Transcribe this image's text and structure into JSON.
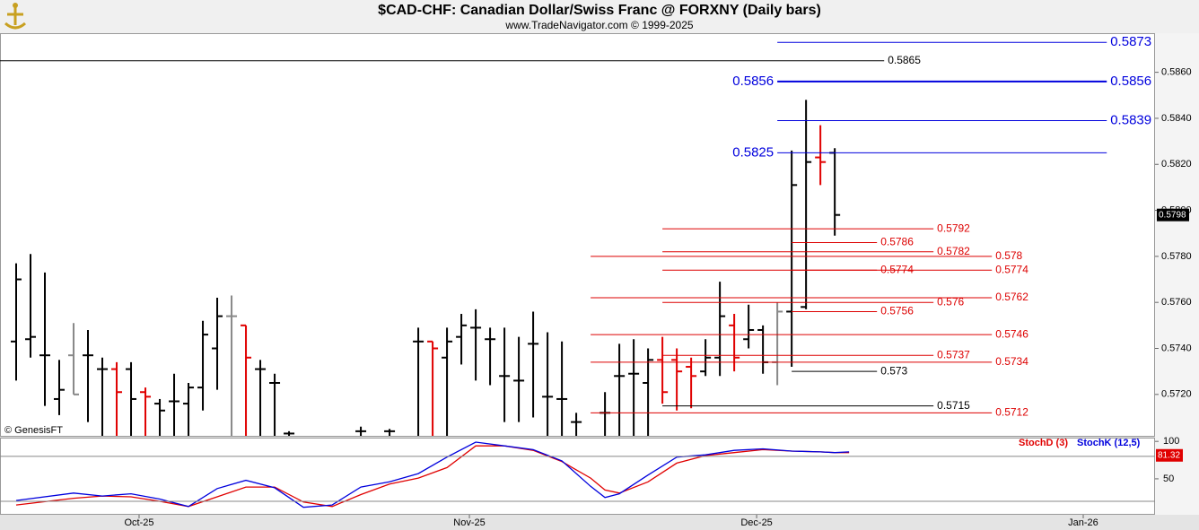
{
  "chart_data": [
    {
      "type": "ohlc",
      "title": "$CAD-CHF:  Canadian Dollar/Swiss Franc @ FORXNY  (Daily bars)",
      "subtitle": "www.TradeNavigator.com © 1999-2025",
      "watermark": "© GenesisFT",
      "xlim": [
        -1.125,
        79.3
      ],
      "ylim": [
        0.5702,
        0.5877
      ],
      "yticks": [
        {
          "value": 0.586,
          "label": "0.5860"
        },
        {
          "value": 0.584,
          "label": "0.5840"
        },
        {
          "value": 0.582,
          "label": "0.5820"
        },
        {
          "value": 0.58,
          "label": "0.5800"
        },
        {
          "value": 0.578,
          "label": "0.5780"
        },
        {
          "value": 0.576,
          "label": "0.5760"
        },
        {
          "value": 0.574,
          "label": "0.5740"
        },
        {
          "value": 0.572,
          "label": "0.5720"
        }
      ],
      "x": [
        0,
        1,
        2,
        3,
        4,
        5,
        6,
        7,
        8,
        9,
        10,
        11,
        12,
        13,
        14,
        15,
        16,
        17,
        18,
        19,
        24,
        26,
        28,
        29,
        30,
        31,
        32,
        33,
        34,
        35,
        36,
        37,
        38,
        39,
        41,
        42,
        43,
        44,
        45,
        46,
        47,
        48,
        49,
        50,
        51,
        52,
        53,
        54,
        55,
        56,
        57
      ],
      "open": [
        0.5743,
        0.5744,
        0.5737,
        0.5718,
        0.5737,
        0.5737,
        0.5731,
        0.5731,
        0.5731,
        0.5721,
        0.5716,
        0.5717,
        0.5716,
        0.5723,
        0.574,
        0.5754,
        0.575,
        0.5731,
        0.5725,
        0.5703,
        0.5704,
        0.5704,
        0.5743,
        0.5743,
        0.5736,
        0.5745,
        0.5749,
        0.5744,
        0.5728,
        0.5726,
        0.5742,
        0.5719,
        0.5718,
        0.5708,
        0.5712,
        0.5728,
        0.5729,
        0.5725,
        0.5735,
        0.5735,
        0.5732,
        0.573,
        0.5736,
        0.575,
        0.5744,
        0.5748,
        0.5734,
        0.5756,
        0.5758,
        0.5823,
        0.5825
      ],
      "high": [
        0.5777,
        0.5781,
        0.5773,
        0.5735,
        0.5751,
        0.5748,
        0.5736,
        0.5734,
        0.5734,
        0.5723,
        0.5718,
        0.5729,
        0.5725,
        0.5752,
        0.5762,
        0.5763,
        0.575,
        0.5735,
        0.5729,
        0.5704,
        0.5706,
        0.5705,
        0.5749,
        0.5743,
        0.5749,
        0.5755,
        0.5757,
        0.5749,
        0.5749,
        0.5745,
        0.5756,
        0.5747,
        0.5743,
        0.5712,
        0.5721,
        0.5742,
        0.5744,
        0.574,
        0.5745,
        0.574,
        0.5736,
        0.5744,
        0.5769,
        0.5755,
        0.5759,
        0.575,
        0.576,
        0.5826,
        0.5848,
        0.5837,
        0.5827
      ],
      "low": [
        0.5726,
        0.5736,
        0.5715,
        0.5711,
        0.572,
        0.5708,
        0.5702,
        0.5702,
        0.5702,
        0.5702,
        0.5702,
        0.5702,
        0.5702,
        0.5713,
        0.5722,
        0.5702,
        0.5702,
        0.5702,
        0.5702,
        0.5702,
        0.5702,
        0.5702,
        0.5702,
        0.5702,
        0.5702,
        0.5733,
        0.5726,
        0.5724,
        0.5708,
        0.5708,
        0.571,
        0.5702,
        0.5702,
        0.5702,
        0.5702,
        0.5702,
        0.5702,
        0.5702,
        0.5716,
        0.5713,
        0.5714,
        0.5728,
        0.5728,
        0.573,
        0.574,
        0.5729,
        0.5724,
        0.5732,
        0.5757,
        0.5811,
        0.5789
      ],
      "close": [
        0.577,
        0.5745,
        0.5737,
        0.5722,
        0.572,
        0.5737,
        0.5731,
        0.5721,
        0.5718,
        0.5719,
        0.5713,
        0.5717,
        0.5723,
        0.5746,
        0.5754,
        0.5754,
        0.5736,
        0.5731,
        0.5725,
        0.5703,
        0.5704,
        0.5704,
        0.5743,
        0.574,
        0.5743,
        0.575,
        0.5749,
        0.5744,
        0.5728,
        0.5726,
        0.5742,
        0.5719,
        0.5718,
        0.5708,
        0.5712,
        0.5728,
        0.5729,
        0.5735,
        0.5721,
        0.573,
        0.5728,
        0.5736,
        0.5754,
        0.5736,
        0.5748,
        0.5734,
        0.5756,
        0.5811,
        0.5821,
        0.5821,
        0.5798
      ],
      "colors": [
        "#000000",
        "#000000",
        "#000000",
        "#000000",
        "#888888",
        "#000000",
        "#000000",
        "#e00000",
        "#000000",
        "#e00000",
        "#000000",
        "#000000",
        "#000000",
        "#000000",
        "#000000",
        "#888888",
        "#e00000",
        "#000000",
        "#000000",
        "#000000",
        "#000000",
        "#000000",
        "#000000",
        "#e00000",
        "#000000",
        "#000000",
        "#000000",
        "#000000",
        "#000000",
        "#000000",
        "#000000",
        "#000000",
        "#000000",
        "#000000",
        "#000000",
        "#000000",
        "#000000",
        "#000000",
        "#e00000",
        "#e00000",
        "#e00000",
        "#000000",
        "#000000",
        "#e00000",
        "#000000",
        "#000000",
        "#888888",
        "#000000",
        "#000000",
        "#e00000",
        "#000000"
      ],
      "last_price": 0.5798,
      "levels": [
        {
          "value": 0.5873,
          "from": 53,
          "to": 75.94,
          "color": "#0000dd",
          "label_at": [
            "right"
          ]
        },
        {
          "value": 0.5865,
          "from": -1.125,
          "to": 60.44,
          "color": "#000000",
          "label_at": [
            "right"
          ]
        },
        {
          "value": 0.5856,
          "from": 53,
          "to": 75.94,
          "color": "#0000dd",
          "label_at": [
            "left",
            "right"
          ]
        },
        {
          "value": 0.5839,
          "from": 53,
          "to": 75.94,
          "color": "#0000dd",
          "label_at": [
            "right"
          ]
        },
        {
          "value": 0.5825,
          "from": 53,
          "to": 75.94,
          "color": "#0000dd",
          "label_at": [
            "left"
          ]
        },
        {
          "value": 0.5792,
          "from": 45,
          "to": 63.875,
          "color": "#dd0000",
          "label_at": [
            "right"
          ]
        },
        {
          "value": 0.5786,
          "from": 54,
          "to": 59.94,
          "color": "#dd0000",
          "label_at": [
            "right"
          ]
        },
        {
          "value": 0.5782,
          "from": 45,
          "to": 63.875,
          "color": "#dd0000",
          "label_at": [
            "right"
          ]
        },
        {
          "value": 0.578,
          "from": 40,
          "to": 67.94,
          "color": "#dd0000",
          "label_at": [
            "right"
          ]
        },
        {
          "value": 0.5774,
          "from": 54,
          "to": 59.94,
          "color": "#dd0000",
          "label_at": [
            "right"
          ]
        },
        {
          "value": 0.5774,
          "from": 45,
          "to": 67.94,
          "color": "#dd0000",
          "label_at": [
            "right"
          ]
        },
        {
          "value": 0.5762,
          "from": 40,
          "to": 67.94,
          "color": "#dd0000",
          "label_at": [
            "right"
          ]
        },
        {
          "value": 0.576,
          "from": 45,
          "to": 63.875,
          "color": "#dd0000",
          "label_at": [
            "right"
          ]
        },
        {
          "value": 0.5756,
          "from": 54,
          "to": 59.94,
          "color": "#dd0000",
          "label_at": [
            "right"
          ]
        },
        {
          "value": 0.5746,
          "from": 40,
          "to": 67.94,
          "color": "#dd0000",
          "label_at": [
            "right"
          ]
        },
        {
          "value": 0.5737,
          "from": 45,
          "to": 63.875,
          "color": "#dd0000",
          "label_at": [
            "right"
          ]
        },
        {
          "value": 0.573,
          "from": 54,
          "to": 59.94,
          "color": "#000000",
          "label_at": [
            "right"
          ]
        },
        {
          "value": 0.5734,
          "from": 40,
          "to": 67.94,
          "color": "#dd0000",
          "label_at": [
            "right"
          ]
        },
        {
          "value": 0.5715,
          "from": 45,
          "to": 63.875,
          "color": "#000000",
          "label_at": [
            "right"
          ]
        },
        {
          "value": 0.5712,
          "from": 40,
          "to": 67.94,
          "color": "#dd0000",
          "label_at": [
            "right"
          ]
        }
      ]
    },
    {
      "type": "line",
      "xlim": [
        -1.125,
        79.3
      ],
      "ylim": [
        2,
        105
      ],
      "yticks": [
        100,
        50
      ],
      "levels": [
        80,
        20
      ],
      "xticks": [
        {
          "value": 8.56,
          "label": "Oct-25"
        },
        {
          "value": 31.56,
          "label": "Nov-25"
        },
        {
          "value": 51.56,
          "label": "Dec-25"
        },
        {
          "value": 74.3,
          "label": "Jan-26"
        }
      ],
      "x": [
        0,
        4,
        6,
        8,
        10,
        12,
        14,
        16,
        18,
        20,
        22,
        24,
        26,
        28,
        30,
        32,
        34,
        36,
        38,
        40,
        41,
        42,
        44,
        46,
        48,
        50,
        52,
        54,
        56,
        57,
        58
      ],
      "series": [
        {
          "name": "StochD (3)",
          "color": "#e00000",
          "values": [
            15,
            24,
            27,
            26,
            20,
            13,
            26,
            39,
            39,
            19,
            13,
            29,
            43,
            51,
            65,
            94,
            94,
            88,
            73,
            51,
            35,
            31,
            46,
            71,
            81,
            85,
            89,
            87,
            86,
            85,
            85
          ]
        },
        {
          "name": "StochK (12,5)",
          "color": "#0000dd",
          "values": [
            21,
            31,
            27,
            30,
            23,
            13,
            37,
            48,
            38,
            12,
            15,
            39,
            46,
            57,
            79,
            99,
            94,
            89,
            74,
            40,
            25,
            30,
            55,
            79,
            82,
            88,
            90,
            87,
            86,
            85,
            86
          ]
        }
      ],
      "last_value": 81.32,
      "last_value_color": "#e00000"
    }
  ]
}
